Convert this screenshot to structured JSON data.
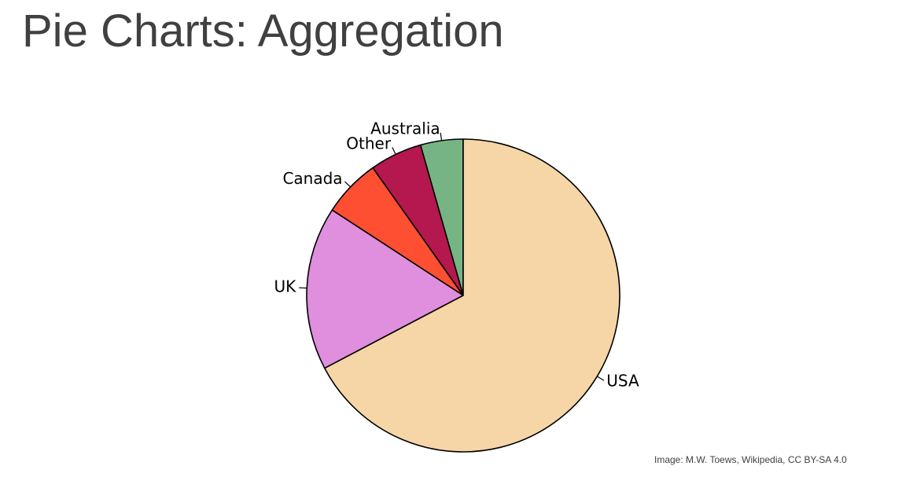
{
  "slide": {
    "title": "Pie Charts: Aggregation",
    "credit": "Image: M.W. Toews, Wikipedia, CC BY-SA 4.0"
  },
  "chart_data": {
    "type": "pie",
    "title": "",
    "start_angle_deg": 90,
    "direction": "counterclockwise",
    "edge_color": "#000000",
    "slices": [
      {
        "label": "Australia",
        "value": 4.4,
        "color": "#76b583"
      },
      {
        "label": "Other",
        "value": 5.4,
        "color": "#b5174f"
      },
      {
        "label": "Canada",
        "value": 6.0,
        "color": "#fe4f33"
      },
      {
        "label": "UK",
        "value": 16.9,
        "color": "#e08ede"
      },
      {
        "label": "USA",
        "value": 67.3,
        "color": "#f6d6a7"
      }
    ]
  }
}
